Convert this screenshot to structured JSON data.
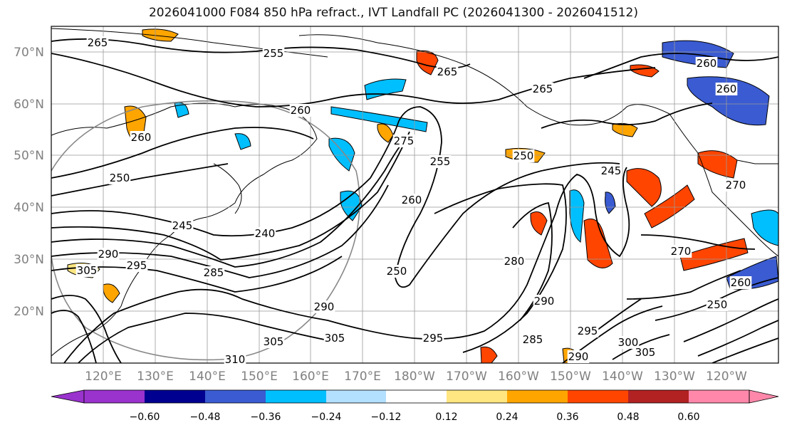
{
  "title": "2026041000 F084 850 hPa refract., IVT Landfall PC (2026041300 - 2026041512)",
  "map": {
    "lat_labels": [
      "70°N",
      "60°N",
      "50°N",
      "40°N",
      "30°N",
      "20°N"
    ],
    "lon_labels": [
      "120°E",
      "130°E",
      "140°E",
      "150°E",
      "160°E",
      "170°E",
      "180°W",
      "170°W",
      "160°W",
      "150°W",
      "140°W",
      "130°W",
      "120°W"
    ],
    "contour_labels": [
      "265",
      "255",
      "265",
      "265",
      "260",
      "260",
      "260",
      "260",
      "275",
      "255",
      "250",
      "245",
      "250",
      "240",
      "245",
      "260",
      "270",
      "290",
      "305",
      "295",
      "285",
      "250",
      "280",
      "290",
      "270",
      "260",
      "250",
      "290",
      "295",
      "300",
      "305",
      "305",
      "295",
      "285",
      "290",
      "310",
      "305"
    ],
    "colors": {
      "positive": [
        "#ffe680",
        "#ffa500",
        "#ff4500",
        "#b22222",
        "#ff88aa"
      ],
      "negative": [
        "#b3e0ff",
        "#00bfff",
        "#3a5bd1",
        "#000090",
        "#9a32cd"
      ],
      "land": "#000000",
      "contour": "#000000",
      "grid": "#999999"
    }
  },
  "colorbar": {
    "ticks": [
      "−0.60",
      "−0.48",
      "−0.36",
      "−0.24",
      "−0.12",
      "0.12",
      "0.24",
      "0.36",
      "0.48",
      "0.60"
    ],
    "colors": [
      "#9a32cd",
      "#000090",
      "#3a5bd1",
      "#00bfff",
      "#b3e0ff",
      "#ffffff",
      "#ffe680",
      "#ffa500",
      "#ff4500",
      "#b22222",
      "#ff88aa"
    ]
  }
}
